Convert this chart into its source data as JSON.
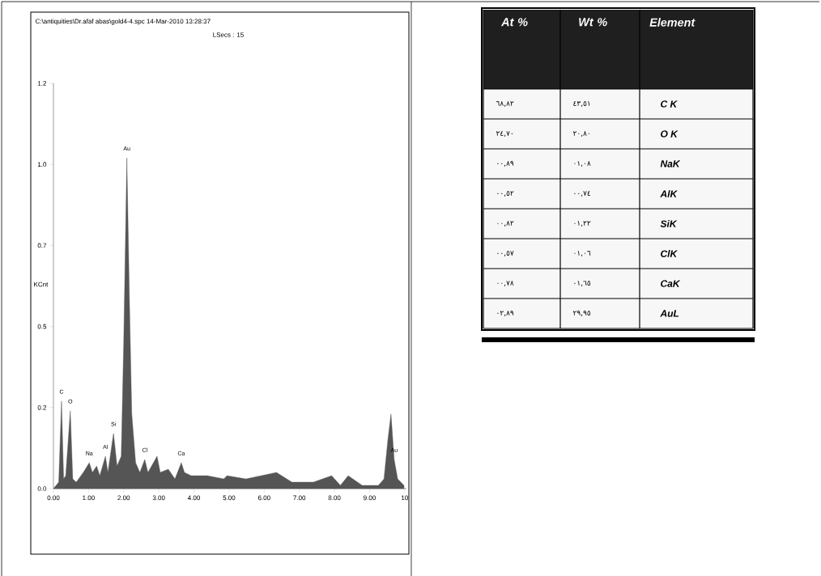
{
  "chart_data": [
    {
      "type": "area",
      "title": "C:\\antiquities\\Dr.afaf abas\\gold4-4.spc  14-Mar-2010 13:28:37",
      "subtitle": "LSecs : 15",
      "ylabel": "KCnt",
      "x": [
        0,
        0.15,
        0.23,
        0.29,
        0.35,
        0.48,
        0.55,
        0.65,
        0.85,
        1.02,
        1.11,
        1.23,
        1.32,
        1.48,
        1.55,
        1.71,
        1.81,
        1.93,
        2.0,
        2.09,
        2.16,
        2.23,
        2.34,
        2.46,
        2.6,
        2.69,
        2.95,
        3.04,
        3.27,
        3.46,
        3.64,
        3.73,
        3.92,
        4.38,
        4.85,
        4.94,
        5.48,
        6.35,
        6.79,
        7.4,
        7.92,
        8.17,
        8.39,
        8.79,
        9.25,
        9.41,
        9.52,
        9.61,
        9.7,
        9.8,
        9.98
      ],
      "series": [
        {
          "color": "#555555",
          "values": [
            0,
            0.02,
            0.27,
            0.03,
            0.04,
            0.24,
            0.03,
            0.02,
            0.05,
            0.08,
            0.05,
            0.07,
            0.04,
            0.1,
            0.05,
            0.17,
            0.07,
            0.1,
            0.45,
            1.02,
            0.6,
            0.23,
            0.08,
            0.05,
            0.09,
            0.05,
            0.1,
            0.05,
            0.06,
            0.03,
            0.08,
            0.05,
            0.04,
            0.04,
            0.03,
            0.04,
            0.03,
            0.05,
            0.02,
            0.02,
            0.04,
            0.01,
            0.04,
            0.01,
            0.01,
            0.03,
            0.15,
            0.23,
            0.09,
            0.03,
            0.01
          ]
        }
      ],
      "xlim": [
        0,
        10.05
      ],
      "ylim": [
        0,
        1.25
      ],
      "xticks": [
        {
          "value": 0,
          "label": "0.00"
        },
        {
          "value": 1,
          "label": "1.00"
        },
        {
          "value": 2,
          "label": "2.00"
        },
        {
          "value": 3,
          "label": "3.00"
        },
        {
          "value": 4,
          "label": "4.00"
        },
        {
          "value": 5,
          "label": "5.00"
        },
        {
          "value": 6,
          "label": "6.00"
        },
        {
          "value": 7,
          "label": "7.00"
        },
        {
          "value": 8,
          "label": "8.00"
        },
        {
          "value": 9,
          "label": "9.00"
        },
        10
      ],
      "yticks": [
        {
          "value": 0,
          "label": "0.0"
        },
        {
          "value": 0.25,
          "label": "0.2"
        },
        {
          "value": 0.5,
          "label": "0.5"
        },
        {
          "value": 0.75,
          "label": "0.7"
        },
        {
          "value": 1.0,
          "label": "1.0"
        },
        {
          "value": 1.25,
          "label": "1.2"
        }
      ],
      "annotations": [
        {
          "text": "C",
          "x": 0.23,
          "y": 0.27
        },
        {
          "text": "O",
          "x": 0.48,
          "y": 0.24
        },
        {
          "text": "Na",
          "x": 1.02,
          "y": 0.08
        },
        {
          "text": "Al",
          "x": 1.48,
          "y": 0.1
        },
        {
          "text": "Si",
          "x": 1.71,
          "y": 0.17
        },
        {
          "text": "Cl",
          "x": 2.6,
          "y": 0.09
        },
        {
          "text": "Ca",
          "x": 3.64,
          "y": 0.08
        },
        {
          "text": "Au",
          "x": 2.09,
          "y": 1.02
        },
        {
          "text": "Au",
          "x": 9.7,
          "y": 0.09
        }
      ]
    },
    {
      "type": "other",
      "xlabel": "Element",
      "categories": [
        "C K",
        "O K",
        "NaK",
        "AlK",
        "SiK",
        "ClK",
        "CaK",
        "AuL"
      ],
      "series": [
        {
          "name": "At %",
          "values": [
            68.82,
            24.7,
            0.89,
            0.52,
            0.82,
            0.57,
            0.78,
            2.89
          ],
          "value_labels": [
            "٦٨,٨٢",
            "٢٤,٧٠",
            "٠٠,٨٩",
            "٠٠,٥٢",
            "٠٠,٨٢",
            "٠٠,٥٧",
            "٠٠,٧٨",
            "٠٢,٨٩"
          ]
        },
        {
          "name": "Wt %",
          "values": [
            43.51,
            20.8,
            1.08,
            0.74,
            1.22,
            1.06,
            1.65,
            29.95
          ],
          "value_labels": [
            "٤٣,٥١",
            "٢٠,٨٠",
            "٠١,٠٨",
            "٠٠,٧٤",
            "٠١,٢٢",
            "٠١,٠٦",
            "٠١,٦٥",
            "٢٩,٩٥"
          ]
        }
      ]
    }
  ]
}
